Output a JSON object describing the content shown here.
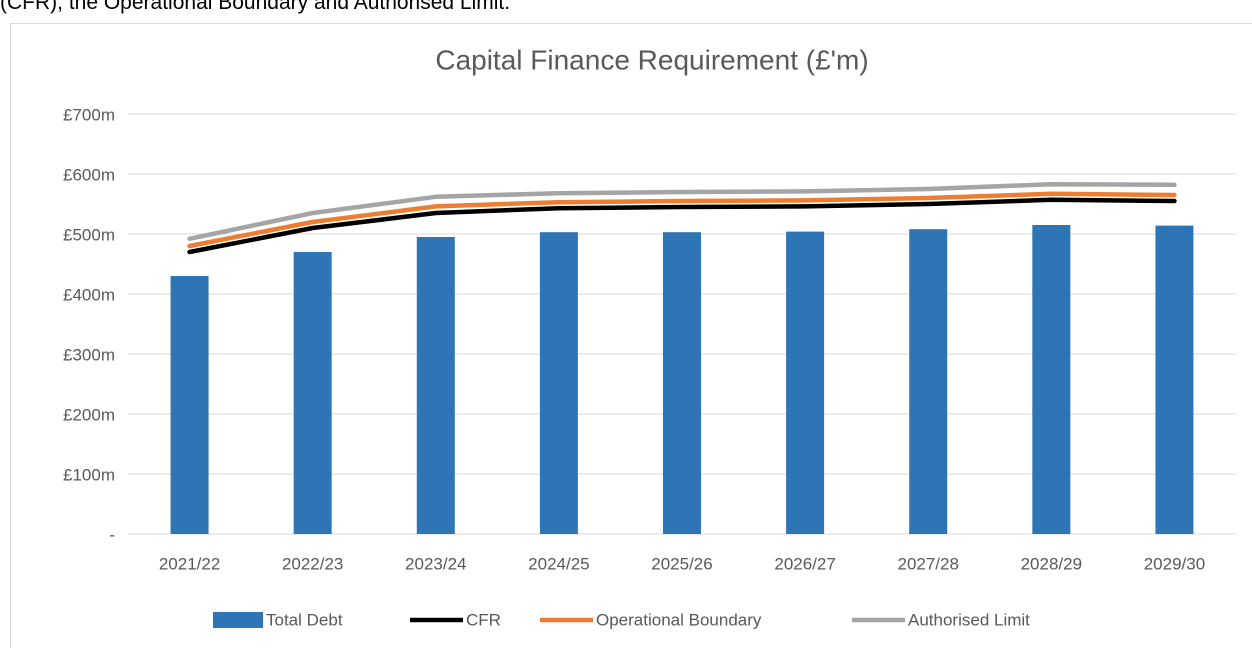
{
  "caption": "(CFR), the Operational Boundary and Authorised Limit.",
  "chart_data": {
    "type": "combo",
    "title": "Capital Finance Requirement (£'m)",
    "categories": [
      "2021/22",
      "2022/23",
      "2023/24",
      "2024/25",
      "2025/26",
      "2026/27",
      "2027/28",
      "2028/29",
      "2029/30"
    ],
    "series": [
      {
        "name": "Total Debt",
        "type": "bar",
        "color": "#2e75b6",
        "values": [
          430,
          470,
          495,
          503,
          503,
          504,
          508,
          515,
          514
        ]
      },
      {
        "name": "CFR",
        "type": "line",
        "color": "#000000",
        "values": [
          470,
          510,
          535,
          543,
          545,
          546,
          550,
          557,
          555
        ]
      },
      {
        "name": "Operational Boundary",
        "type": "line",
        "color": "#ed7d31",
        "values": [
          480,
          520,
          546,
          553,
          555,
          556,
          560,
          567,
          565
        ]
      },
      {
        "name": "Authorised Limit",
        "type": "line",
        "color": "#a5a5a5",
        "values": [
          492,
          535,
          562,
          568,
          570,
          571,
          575,
          583,
          582
        ]
      }
    ],
    "ylim": [
      0,
      700
    ],
    "yticks": [
      {
        "value": 0,
        "label": "-"
      },
      {
        "value": 100,
        "label": "£100m"
      },
      {
        "value": 200,
        "label": "£200m"
      },
      {
        "value": 300,
        "label": "£300m"
      },
      {
        "value": 400,
        "label": "£400m"
      },
      {
        "value": 500,
        "label": "£500m"
      },
      {
        "value": 600,
        "label": "£600m"
      },
      {
        "value": 700,
        "label": "£700m"
      }
    ],
    "grid": true,
    "legend": "bottom"
  }
}
